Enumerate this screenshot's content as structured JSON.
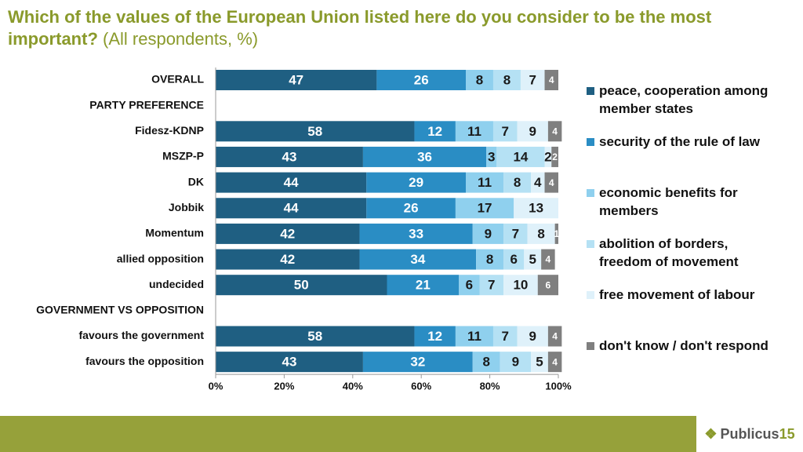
{
  "chart_data": {
    "type": "stacked_bar_horizontal",
    "title": "Which of the values of the European Union listed here do you consider to be the most important?",
    "subtitle": "(All respondents, %)",
    "categories": [
      "OVERALL",
      "PARTY PREFERENCE",
      "Fidesz-KDNP",
      "MSZP-P",
      "DK",
      "Jobbik",
      "Momentum",
      "allied opposition",
      "undecided",
      "GOVERNMENT VS OPPOSITION",
      "favours the government",
      "favours the opposition"
    ],
    "series": [
      {
        "name": "peace, cooperation among member states",
        "color": "#1f5f82",
        "label_color": "#ffffff",
        "values": [
          47,
          null,
          58,
          43,
          44,
          44,
          42,
          42,
          50,
          null,
          58,
          43
        ]
      },
      {
        "name": "security of the rule of law",
        "color": "#2a8dc4",
        "label_color": "#ffffff",
        "values": [
          26,
          null,
          12,
          36,
          29,
          26,
          33,
          34,
          21,
          null,
          12,
          32
        ]
      },
      {
        "name": "economic benefits for members",
        "color": "#8fd0ee",
        "label_color": "#1a1a1a",
        "values": [
          8,
          null,
          11,
          3,
          11,
          17,
          9,
          8,
          6,
          null,
          11,
          8
        ]
      },
      {
        "name": "abolition of borders, freedom of movement",
        "color": "#b5e1f4",
        "label_color": "#1a1a1a",
        "values": [
          8,
          null,
          7,
          14,
          8,
          null,
          7,
          6,
          7,
          null,
          7,
          9
        ]
      },
      {
        "name": "free movement of labour",
        "color": "#dff1fa",
        "label_color": "#1a1a1a",
        "values": [
          7,
          null,
          9,
          2,
          4,
          13,
          8,
          5,
          10,
          null,
          9,
          5
        ]
      },
      {
        "name": "don't know / don't respond",
        "color": "#7f7f7f",
        "label_color": "#ffffff",
        "values": [
          4,
          null,
          4,
          2,
          4,
          null,
          1,
          4,
          6,
          null,
          4,
          4
        ]
      }
    ],
    "xlim": [
      0,
      100
    ],
    "xticks": [
      {
        "value": 0,
        "label": "0%"
      },
      {
        "value": 20,
        "label": "20%"
      },
      {
        "value": 40,
        "label": "40%"
      },
      {
        "value": 60,
        "label": "60%"
      },
      {
        "value": 80,
        "label": "80%"
      },
      {
        "value": 100,
        "label": "100%"
      }
    ]
  },
  "logo": {
    "text": "Publicus",
    "number": "15"
  }
}
